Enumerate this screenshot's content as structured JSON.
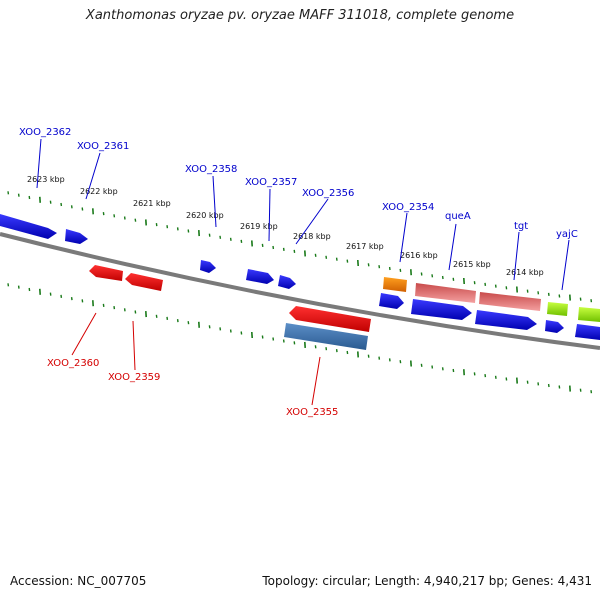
{
  "title": "Xanthomonas oryzae pv. oryzae MAFF 311018, complete genome",
  "footer": {
    "accession": "Accession: NC_007705",
    "summary": "Topology: circular; Length: 4,940,217 bp; Genes: 4,431"
  },
  "colors": {
    "forward_label": "#0000cc",
    "reverse_label": "#d40000",
    "tick": "#1a7a1a",
    "backbone": "#808080"
  },
  "kbp_labels": [
    "2623 kbp",
    "2622 kbp",
    "2621 kbp",
    "2620 kbp",
    "2619 kbp",
    "2618 kbp",
    "2617 kbp",
    "2616 kbp",
    "2615 kbp",
    "2614 kbp"
  ],
  "gene_labels": {
    "XOO_2362": "XOO_2362",
    "XOO_2361": "XOO_2361",
    "XOO_2358": "XOO_2358",
    "XOO_2357": "XOO_2357",
    "XOO_2356": "XOO_2356",
    "XOO_2354": "XOO_2354",
    "queA": "queA",
    "tgt": "tgt",
    "yajC": "yajC",
    "XOO_2360": "XOO_2360",
    "XOO_2359": "XOO_2359",
    "XOO_2355": "XOO_2355"
  }
}
